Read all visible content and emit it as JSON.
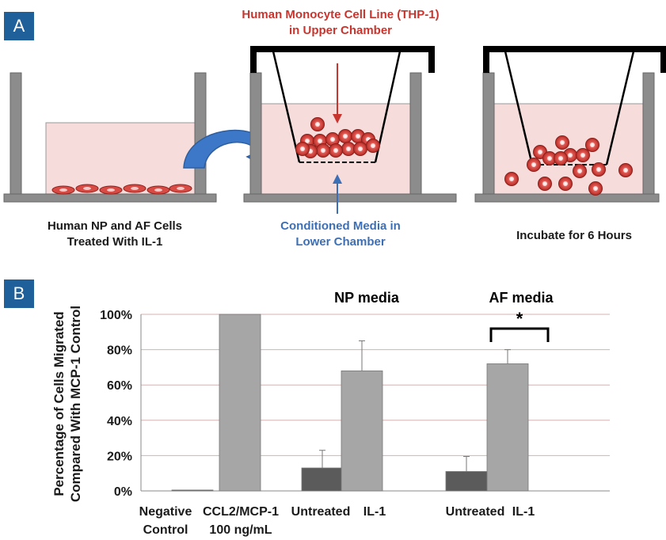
{
  "panels": {
    "a": "A",
    "b": "B"
  },
  "schematic": {
    "upper_label_line1": "Human Monocyte Cell Line (THP-1)",
    "upper_label_line2": "in Upper Chamber",
    "left_caption_line1": "Human NP and AF Cells",
    "left_caption_line2": "Treated With IL-1",
    "middle_caption_line1": "Conditioned Media in",
    "middle_caption_line2": "Lower Chamber",
    "right_caption": "Incubate for 6 Hours",
    "colors": {
      "media": "#f7dcdc",
      "cell": "#c8352e",
      "wall": "#8c8c8c",
      "arrow": "#3d78c8"
    }
  },
  "chart_data": {
    "type": "bar",
    "ylabel_line1": "Percentage of Cells Migrated",
    "ylabel_line2": "Compared With MCP-1 Control",
    "ylim": [
      0,
      100
    ],
    "yticks": [
      "0%",
      "20%",
      "40%",
      "60%",
      "80%",
      "100%"
    ],
    "group_titles": [
      "NP media",
      "AF media"
    ],
    "significance": "*",
    "gridlines": true,
    "bars": [
      {
        "label": [
          "Negative",
          "Control"
        ],
        "value": 0.5,
        "error": 0,
        "color": "#5b5b5b"
      },
      {
        "label": [
          "CCL2/MCP-1",
          "100 ng/mL"
        ],
        "value": 100,
        "error": 0,
        "color": "#a6a6a6"
      },
      {
        "label": [
          "Untreated"
        ],
        "value": 13,
        "error": 10,
        "color": "#5b5b5b"
      },
      {
        "label": [
          "IL-1"
        ],
        "value": 68,
        "error": 17,
        "color": "#a6a6a6"
      },
      {
        "label": [
          "Untreated"
        ],
        "value": 11,
        "error": 8.5,
        "color": "#5b5b5b"
      },
      {
        "label": [
          "IL-1"
        ],
        "value": 72,
        "error": 8,
        "color": "#a6a6a6"
      }
    ]
  }
}
